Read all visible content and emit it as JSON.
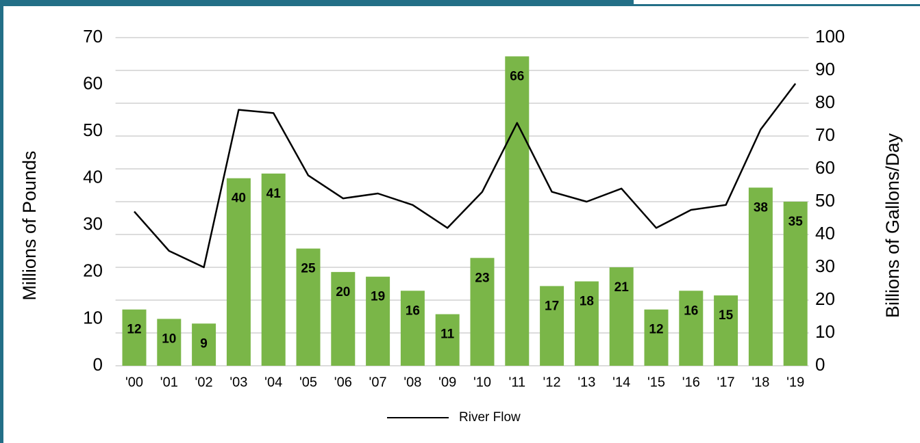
{
  "chart_data": {
    "type": "bar",
    "categories": [
      "'00",
      "'01",
      "'02",
      "'03",
      "'04",
      "'05",
      "'06",
      "'07",
      "'08",
      "'09",
      "'10",
      "'11",
      "'12",
      "'13",
      "'14",
      "'15",
      "'16",
      "'17",
      "'18",
      "'19"
    ],
    "series": [
      {
        "type": "bar",
        "color": "#7ab648",
        "values": [
          12,
          10,
          9,
          40,
          41,
          25,
          20,
          19,
          16,
          11,
          23,
          66,
          17,
          18,
          21,
          12,
          16,
          15,
          38,
          35
        ]
      },
      {
        "name": "River Flow",
        "type": "line",
        "axis": "y2",
        "color": "#000000",
        "values": [
          47,
          35,
          30,
          78,
          77,
          58,
          51,
          52.5,
          49,
          42,
          53,
          74,
          53,
          50,
          54,
          42,
          47.5,
          49,
          72,
          86
        ]
      }
    ],
    "ylim": [
      0,
      70
    ],
    "yticks": [
      0,
      10,
      20,
      30,
      40,
      50,
      60,
      70
    ],
    "y2lim": [
      0,
      100
    ],
    "y2ticks": [
      0,
      10,
      20,
      30,
      40,
      50,
      60,
      70,
      80,
      90,
      100
    ],
    "y_label": "Millions of Pounds",
    "y2_label": "Billions of Gallons/Day",
    "grid": true,
    "legend": "bottom"
  }
}
